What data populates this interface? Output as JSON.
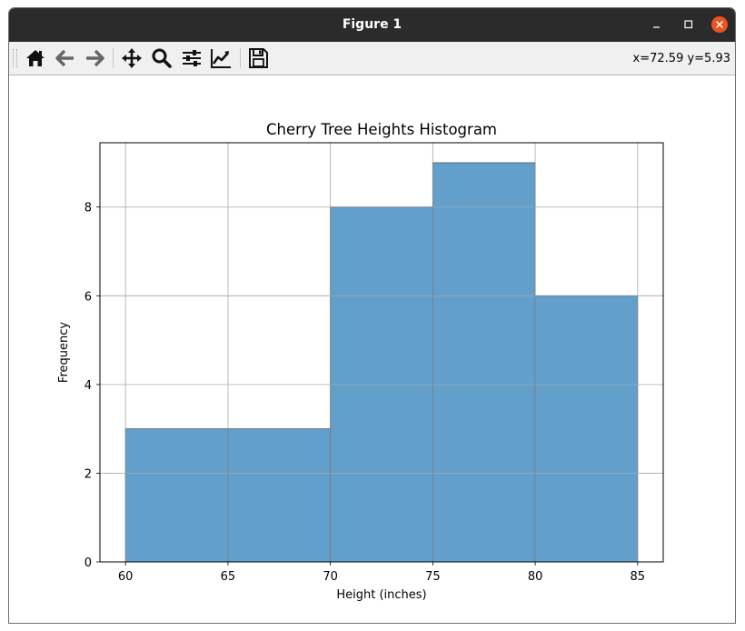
{
  "window": {
    "title": "Figure 1"
  },
  "toolbar": {
    "buttons": [
      "home-icon",
      "back-arrow-icon",
      "forward-arrow-icon",
      "pan-icon",
      "zoom-icon",
      "configure-subplots-icon",
      "edit-axes-icon",
      "save-icon"
    ],
    "coords": "x=72.59 y=5.93"
  },
  "colors": {
    "bar_fill": "#62a0cb",
    "bar_edge": "#3a3a3a",
    "titlebar": "#2b2b2b",
    "close": "#e95420"
  },
  "chart_data": {
    "type": "bar",
    "title": "Cherry Tree Heights Histogram",
    "xlabel": "Height (inches)",
    "ylabel": "Frequency",
    "bins": [
      [
        60,
        65
      ],
      [
        65,
        70
      ],
      [
        70,
        75
      ],
      [
        75,
        80
      ],
      [
        80,
        85
      ]
    ],
    "values": [
      3,
      3,
      8,
      9,
      6
    ],
    "xlim": [
      58.75,
      86.25
    ],
    "ylim": [
      0,
      9.45
    ],
    "xticks": [
      60,
      65,
      70,
      75,
      80,
      85
    ],
    "yticks": [
      0,
      2,
      4,
      6,
      8
    ],
    "grid": true
  }
}
